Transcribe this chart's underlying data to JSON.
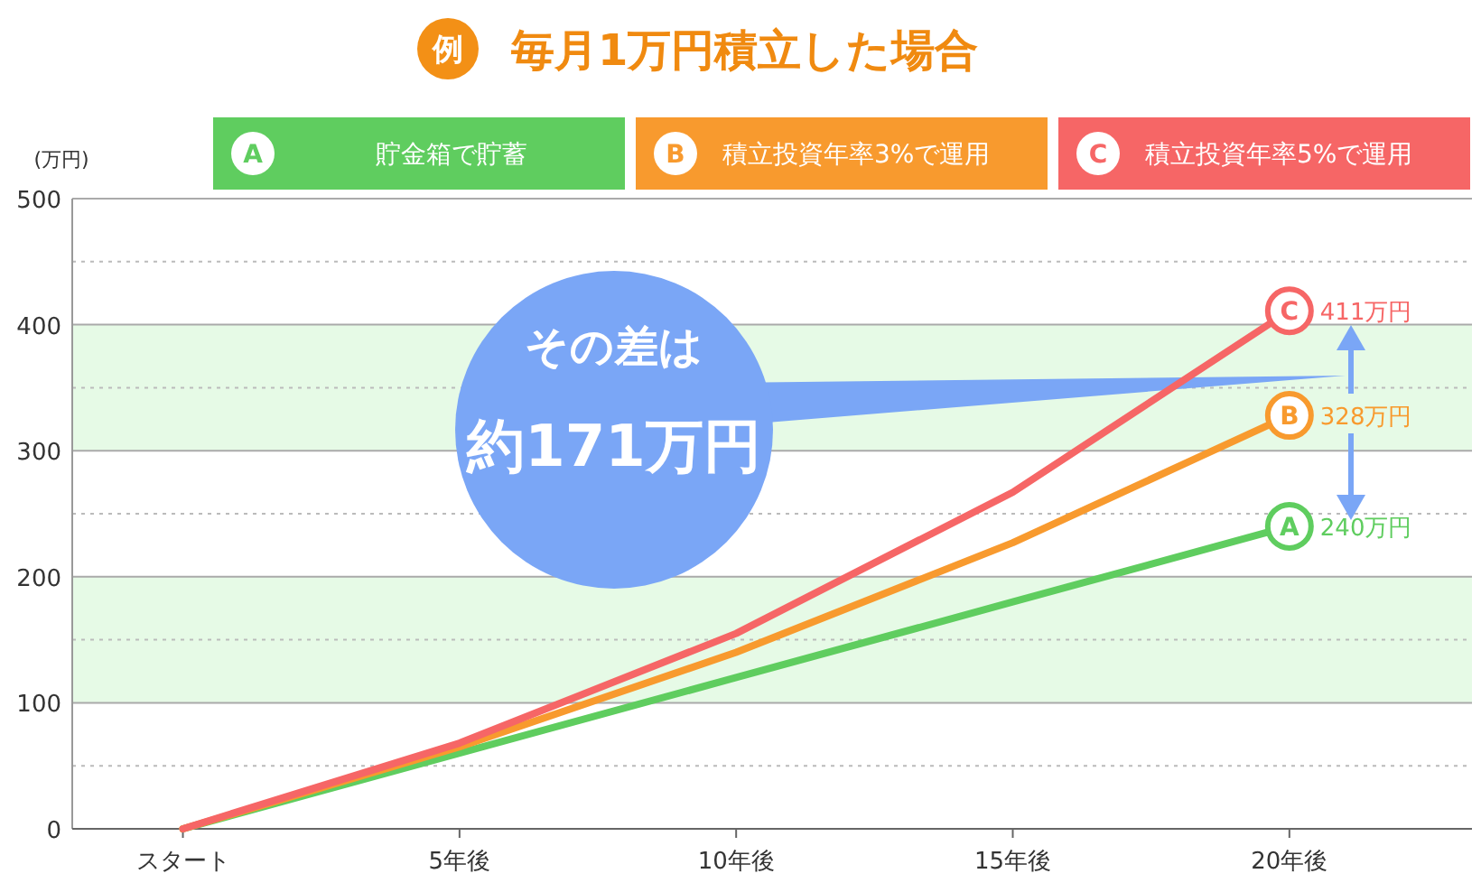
{
  "chart_data": {
    "type": "line",
    "title": "毎月1万円積立した場合",
    "ylabel": "(万円)",
    "x": [
      0,
      5,
      10,
      15,
      20
    ],
    "xlim": [
      -2,
      23.3
    ],
    "xticks": [
      {
        "value": 0,
        "label": "スタート"
      },
      {
        "value": 5,
        "label": "5年後"
      },
      {
        "value": 10,
        "label": "10年後"
      },
      {
        "value": 15,
        "label": "15年後"
      },
      {
        "value": 20,
        "label": "20年後"
      }
    ],
    "ylim": [
      0,
      500
    ],
    "yticks": [
      0,
      {
        "value": 50,
        "label": null
      },
      100,
      {
        "value": 150,
        "label": null
      },
      200,
      {
        "value": 250,
        "label": null
      },
      300,
      {
        "value": 350,
        "label": null
      },
      400,
      {
        "value": 450,
        "label": null
      },
      500
    ],
    "grid": "y",
    "legend": "top",
    "series": [
      {
        "name": "貯金箱で貯蓄",
        "color": "#5fcd5f",
        "values": [
          0,
          60,
          120,
          180,
          240
        ],
        "value_labels": [
          null,
          null,
          null,
          null,
          "240万円"
        ]
      },
      {
        "name": "積立投資年率3%で運用",
        "color": "#f89a2e",
        "values": [
          0,
          65,
          140,
          227,
          328
        ],
        "value_labels": [
          null,
          null,
          null,
          null,
          "328万円"
        ]
      },
      {
        "name": "積立投資年率5%で運用",
        "color": "#f66666",
        "values": [
          0,
          68,
          155,
          267,
          411
        ],
        "value_labels": [
          null,
          null,
          null,
          null,
          "411万円"
        ]
      }
    ],
    "bands": [
      {
        "axis": "y",
        "from": 100,
        "to": 200,
        "color": "#e6fae6"
      },
      {
        "axis": "y",
        "from": 300,
        "to": 400,
        "color": "#e6fae6"
      }
    ],
    "annotations": [
      "例",
      "A",
      "B",
      "C",
      "その差は",
      "約171万円"
    ]
  }
}
